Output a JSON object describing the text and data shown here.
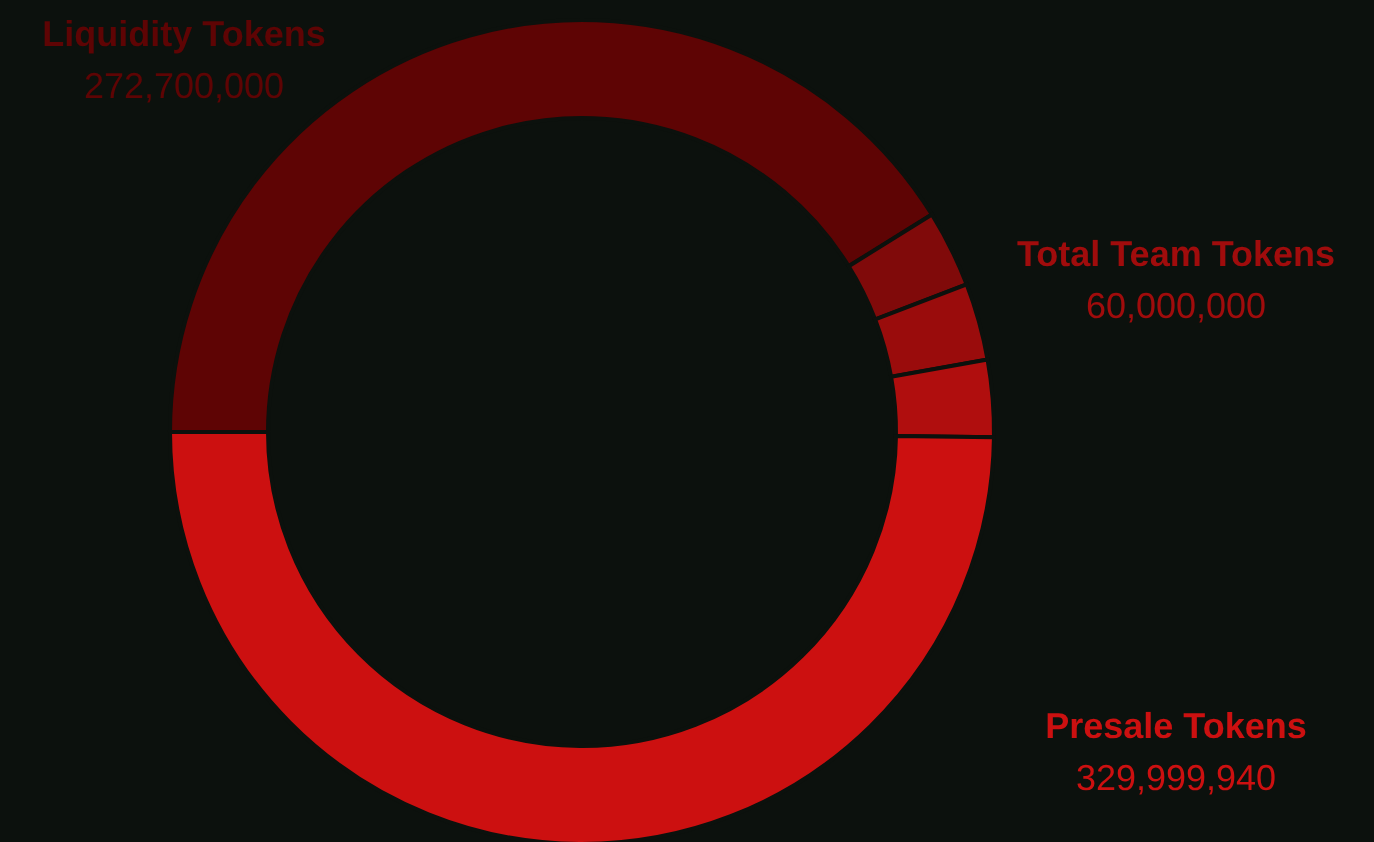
{
  "chart_data": {
    "type": "donut",
    "categories": [
      "Liquidity Tokens",
      null,
      null,
      null,
      "Presale Tokens"
    ],
    "values": [
      272700000,
      20000000,
      20000000,
      20000000,
      329999940
    ],
    "value_labels": [
      "272,700,000",
      null,
      null,
      null,
      "329,999,940"
    ],
    "colors": [
      "#5e0404",
      "#800a0a",
      "#9a0c0c",
      "#b00e0e",
      "#cc1010"
    ],
    "annotations": [
      "Total Team Tokens",
      "60,000,000"
    ]
  }
}
